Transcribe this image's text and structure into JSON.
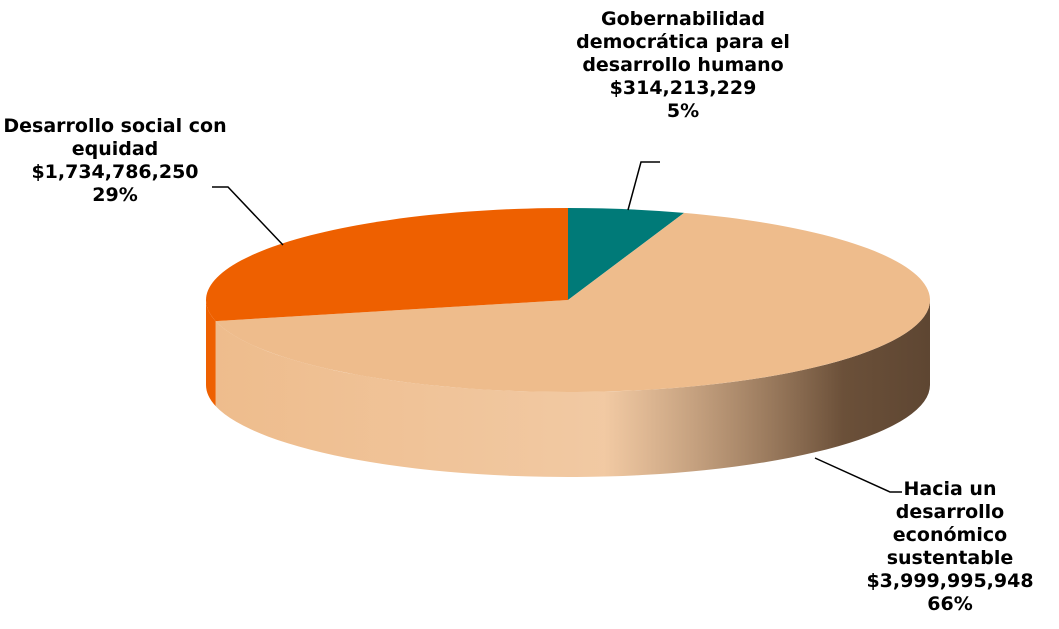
{
  "chart_data": {
    "type": "pie",
    "categories": [
      "Gobernabilidad democrática para el desarrollo humano",
      "Hacia un desarrollo económico sustentable",
      "Desarrollo social con equidad"
    ],
    "values": [
      314213229,
      3999995948,
      1734786250
    ],
    "value_labels": [
      "$314,213,229",
      "$3,999,995,948",
      "$1,734,786,250"
    ],
    "percent_labels": [
      "5%",
      "66%",
      "29%"
    ],
    "colors": [
      "#007a78",
      "#eebc8c",
      "#ee6000"
    ]
  }
}
